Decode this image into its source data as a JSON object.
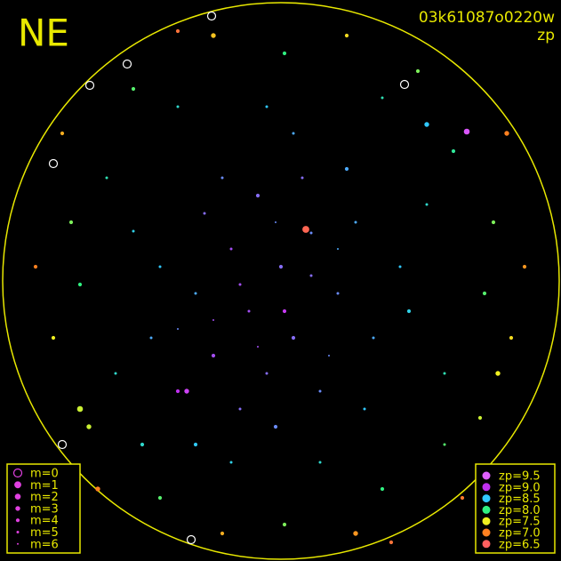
{
  "chart_data": {
    "type": "scatter",
    "title": "NE",
    "subtitle": "03k61087o0220w",
    "color_label": "zp",
    "xlim": [
      0,
      631
    ],
    "ylim": [
      0,
      631
    ],
    "mag_legend": [
      {
        "label": "m=0",
        "m": 0
      },
      {
        "label": "m=1",
        "m": 1
      },
      {
        "label": "m=2",
        "m": 2
      },
      {
        "label": "m=3",
        "m": 3
      },
      {
        "label": "m=4",
        "m": 4
      },
      {
        "label": "m=5",
        "m": 5
      },
      {
        "label": "m=6",
        "m": 6
      }
    ],
    "zp_legend": [
      {
        "label": "zp=9.5",
        "zp": 9.5,
        "color": "#e060ff"
      },
      {
        "label": "zp=9.0",
        "zp": 9.0,
        "color": "#c030f0"
      },
      {
        "label": "zp=8.5",
        "zp": 8.5,
        "color": "#30c8ff"
      },
      {
        "label": "zp=8.0",
        "zp": 8.0,
        "color": "#30f080"
      },
      {
        "label": "zp=7.5",
        "zp": 7.5,
        "color": "#f0f020"
      },
      {
        "label": "zp=7.0",
        "zp": 7.0,
        "color": "#ff8020"
      },
      {
        "label": "zp=6.5",
        "zp": 6.5,
        "color": "#ff6060"
      }
    ],
    "points": [
      {
        "x": 316,
        "y": 300,
        "zp": 8.8,
        "m": 4
      },
      {
        "x": 280,
        "y": 350,
        "zp": 8.9,
        "m": 5
      },
      {
        "x": 350,
        "y": 262,
        "zp": 8.7,
        "m": 5
      },
      {
        "x": 240,
        "y": 400,
        "zp": 8.9,
        "m": 4
      },
      {
        "x": 300,
        "y": 420,
        "zp": 8.8,
        "m": 5
      },
      {
        "x": 380,
        "y": 330,
        "zp": 8.7,
        "m": 5
      },
      {
        "x": 260,
        "y": 280,
        "zp": 8.9,
        "m": 5
      },
      {
        "x": 330,
        "y": 380,
        "zp": 8.8,
        "m": 4
      },
      {
        "x": 220,
        "y": 330,
        "zp": 8.6,
        "m": 5
      },
      {
        "x": 400,
        "y": 250,
        "zp": 8.6,
        "m": 5
      },
      {
        "x": 290,
        "y": 220,
        "zp": 8.8,
        "m": 4
      },
      {
        "x": 360,
        "y": 440,
        "zp": 8.7,
        "m": 5
      },
      {
        "x": 200,
        "y": 440,
        "zp": 9.0,
        "m": 4
      },
      {
        "x": 420,
        "y": 380,
        "zp": 8.6,
        "m": 5
      },
      {
        "x": 250,
        "y": 200,
        "zp": 8.7,
        "m": 5
      },
      {
        "x": 340,
        "y": 200,
        "zp": 8.8,
        "m": 5
      },
      {
        "x": 310,
        "y": 480,
        "zp": 8.7,
        "m": 4
      },
      {
        "x": 180,
        "y": 300,
        "zp": 8.5,
        "m": 5
      },
      {
        "x": 450,
        "y": 300,
        "zp": 8.5,
        "m": 5
      },
      {
        "x": 270,
        "y": 460,
        "zp": 8.8,
        "m": 5
      },
      {
        "x": 390,
        "y": 190,
        "zp": 8.6,
        "m": 4
      },
      {
        "x": 230,
        "y": 240,
        "zp": 8.8,
        "m": 5
      },
      {
        "x": 330,
        "y": 150,
        "zp": 8.6,
        "m": 5
      },
      {
        "x": 220,
        "y": 500,
        "zp": 8.5,
        "m": 4
      },
      {
        "x": 410,
        "y": 460,
        "zp": 8.5,
        "m": 5
      },
      {
        "x": 170,
        "y": 380,
        "zp": 8.6,
        "m": 5
      },
      {
        "x": 460,
        "y": 350,
        "zp": 8.4,
        "m": 4
      },
      {
        "x": 300,
        "y": 120,
        "zp": 8.5,
        "m": 5
      },
      {
        "x": 150,
        "y": 260,
        "zp": 8.4,
        "m": 5
      },
      {
        "x": 480,
        "y": 230,
        "zp": 8.3,
        "m": 5
      },
      {
        "x": 210,
        "y": 440,
        "zp": 9.2,
        "m": 3
      },
      {
        "x": 320,
        "y": 350,
        "zp": 9.1,
        "m": 4
      },
      {
        "x": 270,
        "y": 320,
        "zp": 8.9,
        "m": 5
      },
      {
        "x": 350,
        "y": 310,
        "zp": 8.8,
        "m": 5
      },
      {
        "x": 290,
        "y": 390,
        "zp": 8.9,
        "m": 6
      },
      {
        "x": 370,
        "y": 400,
        "zp": 8.7,
        "m": 6
      },
      {
        "x": 240,
        "y": 360,
        "zp": 8.9,
        "m": 6
      },
      {
        "x": 310,
        "y": 250,
        "zp": 8.7,
        "m": 6
      },
      {
        "x": 380,
        "y": 280,
        "zp": 8.6,
        "m": 6
      },
      {
        "x": 200,
        "y": 370,
        "zp": 8.7,
        "m": 6
      },
      {
        "x": 260,
        "y": 520,
        "zp": 8.4,
        "m": 5
      },
      {
        "x": 360,
        "y": 520,
        "zp": 8.3,
        "m": 5
      },
      {
        "x": 130,
        "y": 420,
        "zp": 8.3,
        "m": 5
      },
      {
        "x": 500,
        "y": 420,
        "zp": 8.2,
        "m": 5
      },
      {
        "x": 120,
        "y": 200,
        "zp": 8.2,
        "m": 5
      },
      {
        "x": 510,
        "y": 170,
        "zp": 8.1,
        "m": 4
      },
      {
        "x": 200,
        "y": 120,
        "zp": 8.3,
        "m": 5
      },
      {
        "x": 430,
        "y": 110,
        "zp": 8.2,
        "m": 5
      },
      {
        "x": 344,
        "y": 258,
        "zp": 6.6,
        "m": 1
      },
      {
        "x": 430,
        "y": 550,
        "zp": 8.0,
        "m": 4
      },
      {
        "x": 180,
        "y": 560,
        "zp": 7.9,
        "m": 4
      },
      {
        "x": 90,
        "y": 320,
        "zp": 8.0,
        "m": 4
      },
      {
        "x": 545,
        "y": 330,
        "zp": 7.9,
        "m": 4
      },
      {
        "x": 80,
        "y": 250,
        "zp": 7.8,
        "m": 4
      },
      {
        "x": 555,
        "y": 250,
        "zp": 7.8,
        "m": 4
      },
      {
        "x": 150,
        "y": 100,
        "zp": 7.9,
        "m": 4
      },
      {
        "x": 470,
        "y": 80,
        "zp": 7.8,
        "m": 4
      },
      {
        "x": 320,
        "y": 60,
        "zp": 8.0,
        "m": 4
      },
      {
        "x": 320,
        "y": 590,
        "zp": 7.8,
        "m": 4
      },
      {
        "x": 100,
        "y": 480,
        "zp": 7.6,
        "m": 3
      },
      {
        "x": 540,
        "y": 470,
        "zp": 7.6,
        "m": 4
      },
      {
        "x": 60,
        "y": 380,
        "zp": 7.5,
        "m": 4
      },
      {
        "x": 575,
        "y": 380,
        "zp": 7.4,
        "m": 4
      },
      {
        "x": 240,
        "y": 40,
        "zp": 7.3,
        "m": 3
      },
      {
        "x": 390,
        "y": 40,
        "zp": 7.4,
        "m": 4
      },
      {
        "x": 250,
        "y": 600,
        "zp": 7.2,
        "m": 4
      },
      {
        "x": 400,
        "y": 600,
        "zp": 7.1,
        "m": 3
      },
      {
        "x": 70,
        "y": 150,
        "zp": 7.2,
        "m": 4
      },
      {
        "x": 570,
        "y": 150,
        "zp": 7.0,
        "m": 3
      },
      {
        "x": 40,
        "y": 300,
        "zp": 7.0,
        "m": 4
      },
      {
        "x": 590,
        "y": 300,
        "zp": 7.1,
        "m": 4
      },
      {
        "x": 110,
        "y": 550,
        "zp": 7.0,
        "m": 3
      },
      {
        "x": 520,
        "y": 560,
        "zp": 6.9,
        "m": 4
      },
      {
        "x": 200,
        "y": 35,
        "zp": 6.8,
        "m": 4
      },
      {
        "x": 440,
        "y": 610,
        "zp": 6.8,
        "m": 4
      },
      {
        "x": 90,
        "y": 460,
        "zp": 7.6,
        "m": 2
      },
      {
        "x": 560,
        "y": 420,
        "zp": 7.5,
        "m": 3
      },
      {
        "x": 480,
        "y": 140,
        "zp": 8.5,
        "m": 3
      },
      {
        "x": 160,
        "y": 500,
        "zp": 8.3,
        "m": 4
      },
      {
        "x": 500,
        "y": 500,
        "zp": 7.9,
        "m": 5
      },
      {
        "x": 238,
        "y": 18,
        "zp": 9.9,
        "m": 0
      },
      {
        "x": 143,
        "y": 72,
        "zp": 9.9,
        "m": 0
      },
      {
        "x": 101,
        "y": 96,
        "zp": 9.9,
        "m": 0
      },
      {
        "x": 60,
        "y": 184,
        "zp": 9.9,
        "m": 0
      },
      {
        "x": 70,
        "y": 500,
        "zp": 9.9,
        "m": 0
      },
      {
        "x": 215,
        "y": 607,
        "zp": 9.9,
        "m": 0
      },
      {
        "x": 455,
        "y": 95,
        "zp": 9.9,
        "m": 0
      },
      {
        "x": 525,
        "y": 148,
        "zp": 9.4,
        "m": 2
      }
    ]
  }
}
